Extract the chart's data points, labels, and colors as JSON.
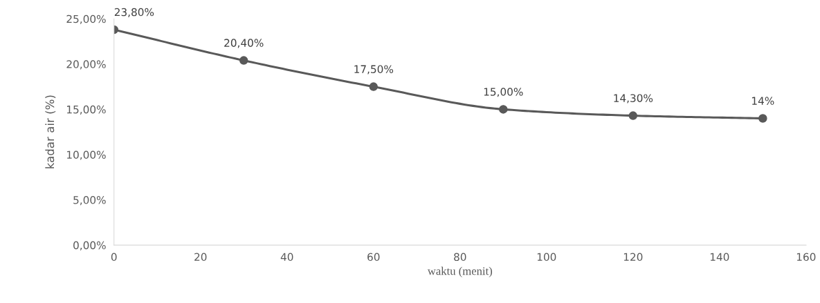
{
  "chart_data": {
    "type": "line",
    "xlabel": "waktu (menit)",
    "ylabel": "kadar air (%)",
    "x": [
      0,
      30,
      60,
      90,
      120,
      150
    ],
    "series": [
      {
        "color": "#595959",
        "values": [
          23.8,
          20.4,
          17.5,
          15.0,
          14.3,
          14
        ],
        "value_labels": [
          "23,80%",
          "20,40%",
          "17,50%",
          "15,00%",
          "14,30%",
          "14%"
        ]
      }
    ],
    "xlim": [
      0,
      160
    ],
    "xticks": [
      0,
      20,
      40,
      60,
      80,
      100,
      120,
      140,
      160
    ],
    "ylim": [
      0,
      25
    ],
    "yticks": [
      {
        "value": 0,
        "label": "0,00%"
      },
      {
        "value": 5,
        "label": "5,00%"
      },
      {
        "value": 10,
        "label": "10,00%"
      },
      {
        "value": 15,
        "label": "15,00%"
      },
      {
        "value": 20,
        "label": "20,00%"
      },
      {
        "value": 25,
        "label": "25,00%"
      }
    ],
    "grid": false,
    "legend": false,
    "marker": "circle",
    "line_style": "solid"
  }
}
